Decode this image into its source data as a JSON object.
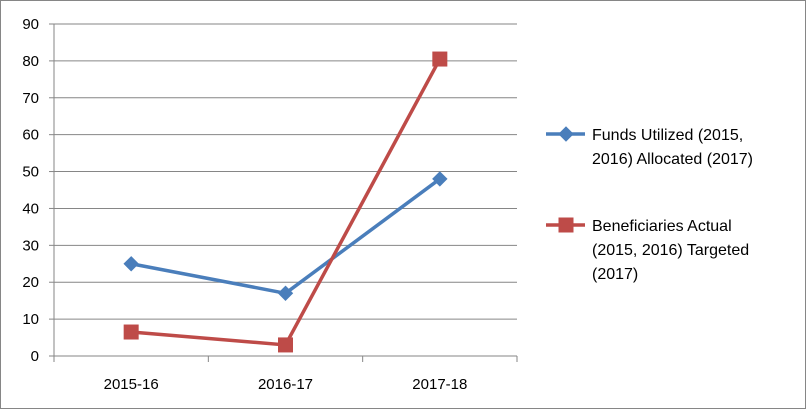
{
  "chart_data": {
    "type": "line",
    "categories": [
      "2015-16",
      "2016-17",
      "2017-18"
    ],
    "ylim": [
      0,
      90
    ],
    "y_ticks": [
      0,
      10,
      20,
      30,
      40,
      50,
      60,
      70,
      80,
      90
    ],
    "grid": true,
    "legend_position": "right",
    "series": [
      {
        "name_lines": [
          "Funds Utilized (2015,",
          "2016) Allocated (2017)"
        ],
        "values": [
          25,
          17,
          48
        ],
        "color": "#4a7ebb",
        "marker": "diamond"
      },
      {
        "name_lines": [
          "Beneficiaries Actual",
          "(2015, 2016) Targeted",
          "(2017)"
        ],
        "values": [
          6.5,
          3,
          80.5
        ],
        "color": "#be4b48",
        "marker": "square"
      }
    ]
  }
}
